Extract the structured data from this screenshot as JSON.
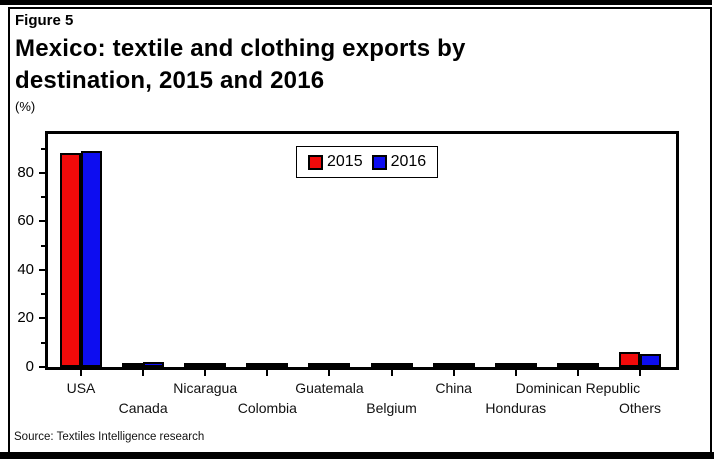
{
  "figure": {
    "label": "Figure 5",
    "title_line1": "Mexico: textile and clothing exports by",
    "title_line2": "destination, 2015 and 2016",
    "unit": "(%)",
    "source": "Source: Textiles Intelligence research"
  },
  "chart_data": {
    "type": "bar",
    "title": "Mexico: textile and clothing exports by destination, 2015 and 2016",
    "ylabel": "(%)",
    "categories": [
      "USA",
      "Canada",
      "Nicaragua",
      "Colombia",
      "Guatemala",
      "Belgium",
      "China",
      "Honduras",
      "Dominican Republic",
      "Others"
    ],
    "series": [
      {
        "name": "2015",
        "color": "#f10a0a",
        "values": [
          88,
          1.4,
          1.7,
          1.2,
          1.3,
          0.9,
          1.0,
          1.0,
          0.7,
          6.3
        ]
      },
      {
        "name": "2016",
        "color": "#0d0df0",
        "values": [
          89,
          2.2,
          1.6,
          1.2,
          1.2,
          0.9,
          0.9,
          1.0,
          0.7,
          5.4
        ]
      }
    ],
    "ylim": [
      0,
      96
    ],
    "yticks": [
      0,
      20,
      40,
      60,
      80
    ],
    "minor_yticks": [
      10,
      30,
      50,
      70,
      90
    ],
    "bar_outline_color": "#000000",
    "grid": false,
    "legend_position": "top-center"
  }
}
